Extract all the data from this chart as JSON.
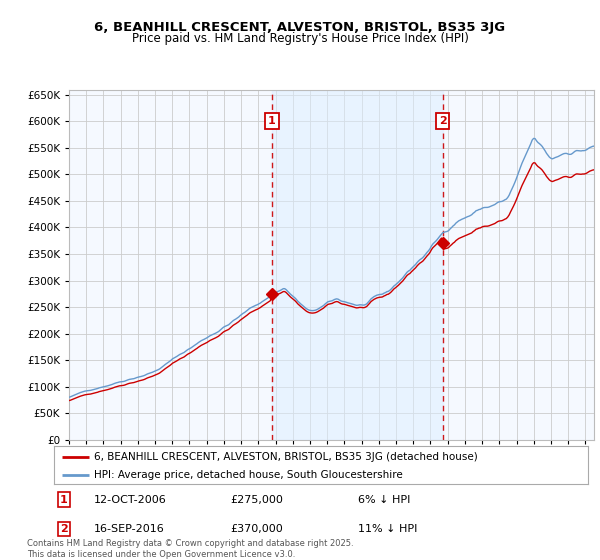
{
  "title": "6, BEANHILL CRESCENT, ALVESTON, BRISTOL, BS35 3JG",
  "subtitle": "Price paid vs. HM Land Registry's House Price Index (HPI)",
  "legend_line1": "6, BEANHILL CRESCENT, ALVESTON, BRISTOL, BS35 3JG (detached house)",
  "legend_line2": "HPI: Average price, detached house, South Gloucestershire",
  "footnote": "Contains HM Land Registry data © Crown copyright and database right 2025.\nThis data is licensed under the Open Government Licence v3.0.",
  "marker1_date": "12-OCT-2006",
  "marker1_price": "£275,000",
  "marker1_note": "6% ↓ HPI",
  "marker2_date": "16-SEP-2016",
  "marker2_price": "£370,000",
  "marker2_note": "11% ↓ HPI",
  "red_line_color": "#cc0000",
  "blue_line_color": "#6699cc",
  "blue_fill_color": "#ddeeff",
  "vline_color": "#cc0000",
  "grid_color": "#cccccc",
  "plot_bg_color": "#f5f9ff",
  "marker1_x_year": 2006.79,
  "marker2_x_year": 2016.71,
  "ylim": [
    0,
    660000
  ],
  "xlim_start": 1995.0,
  "xlim_end": 2025.5
}
